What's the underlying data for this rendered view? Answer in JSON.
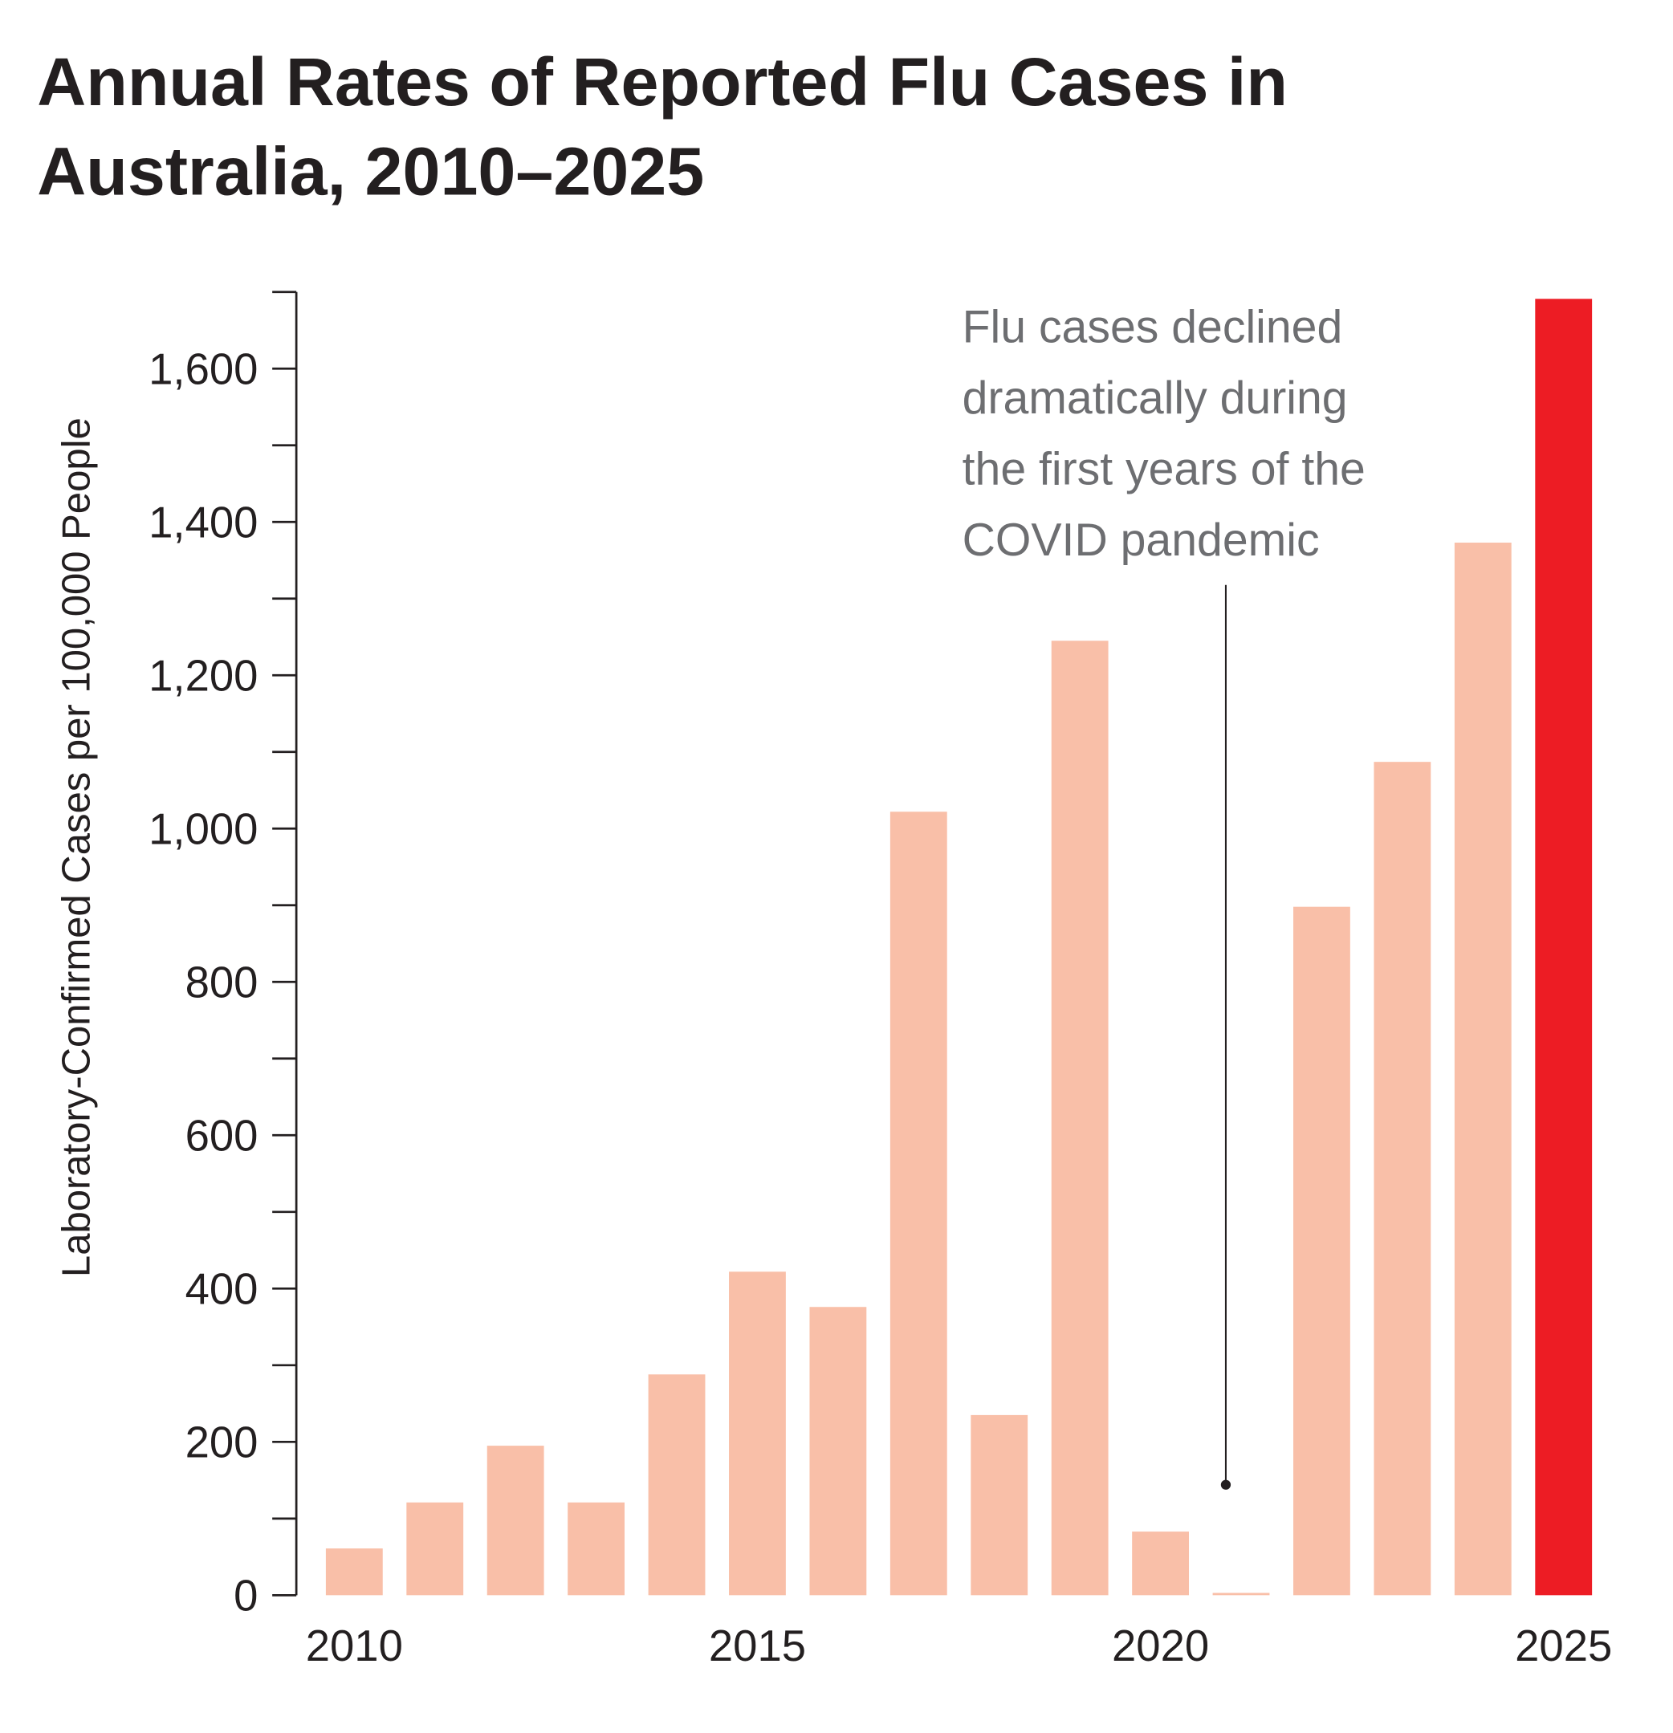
{
  "chart_data": {
    "type": "bar",
    "title_lines": [
      "Annual Rates of Reported Flu Cases in",
      "Australia, 2010–2025"
    ],
    "xlabel": "",
    "ylabel": "Laboratory-Confirmed Cases per 100,000 People",
    "categories": [
      "2010",
      "2011",
      "2012",
      "2013",
      "2014",
      "2015",
      "2016",
      "2017",
      "2018",
      "2019",
      "2020",
      "2021",
      "2022",
      "2023",
      "2024",
      "2025"
    ],
    "values": [
      61,
      121,
      195,
      121,
      288,
      422,
      376,
      1022,
      235,
      1245,
      83,
      3,
      898,
      1087,
      1373,
      1691
    ],
    "ylim": [
      0,
      1700
    ],
    "yticks": [
      0,
      200,
      400,
      600,
      800,
      1000,
      1200,
      1400,
      1600
    ],
    "ytick_labels": [
      "0",
      "200",
      "400",
      "600",
      "800",
      "1,000",
      "1,200",
      "1,400",
      "1,600"
    ],
    "xtick_labels": [
      "2010",
      "2015",
      "2020",
      "2025"
    ],
    "grid": false,
    "colors": {
      "default": "#f9bfa8",
      "highlight": "#ed1c24",
      "text": "#231f20",
      "annotation": "#6d6e71"
    },
    "highlight_category": "2025",
    "annotation": {
      "lines": [
        "Flu cases declined",
        "dramatically during",
        "the first years of the",
        "COVID pandemic"
      ],
      "points_to": "2021"
    }
  }
}
